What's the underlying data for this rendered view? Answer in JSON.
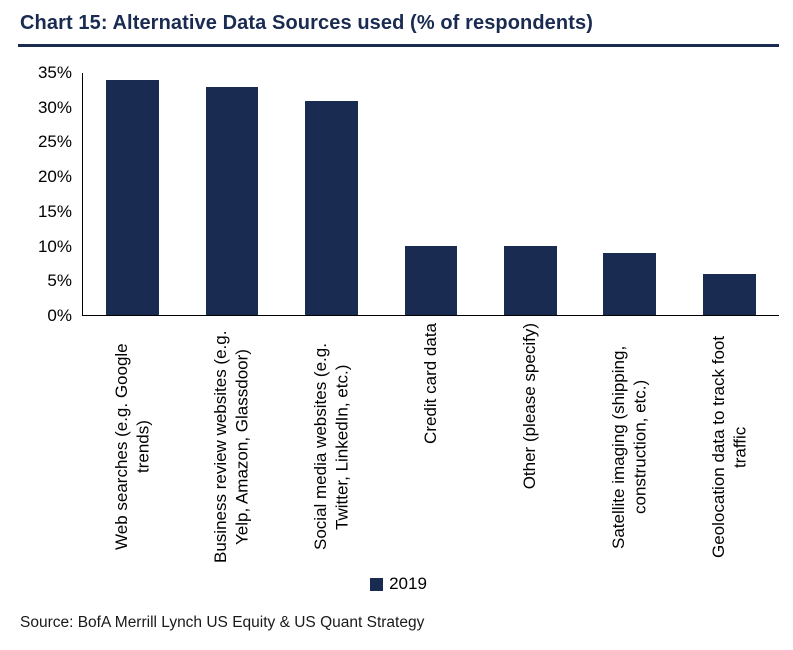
{
  "header": {
    "title": "Chart 15: Alternative Data Sources used (% of respondents)"
  },
  "footer": {
    "source": "Source: BofA Merrill Lynch US Equity & US Quant Strategy"
  },
  "colors": {
    "accent_navy": "#1a2b52",
    "bar_navy": "#1a2b52",
    "axis_black": "#000000"
  },
  "chart_data": {
    "type": "bar",
    "title": "Chart 15: Alternative Data Sources used (% of respondents)",
    "categories": [
      "Web searches (e.g. Google trends)",
      "Business review websites (e.g. Yelp, Amazon, Glassdoor)",
      "Social media websites (e.g. Twitter, LinkedIn, etc.)",
      "Credit card data",
      "Other (please specify)",
      "Satellite imaging (shipping, construction, etc.)",
      "Geolocation data to track foot traffic"
    ],
    "series": [
      {
        "name": "2019",
        "values": [
          34,
          33,
          31,
          10,
          10,
          9,
          6
        ]
      }
    ],
    "unit": "%",
    "ylim": [
      0,
      35
    ],
    "y_tick_step": 5,
    "y_tick_labels": [
      "35%",
      "30%",
      "25%",
      "20%",
      "15%",
      "10%",
      "5%",
      "0%"
    ],
    "grid": false,
    "legend_position": "bottom"
  }
}
